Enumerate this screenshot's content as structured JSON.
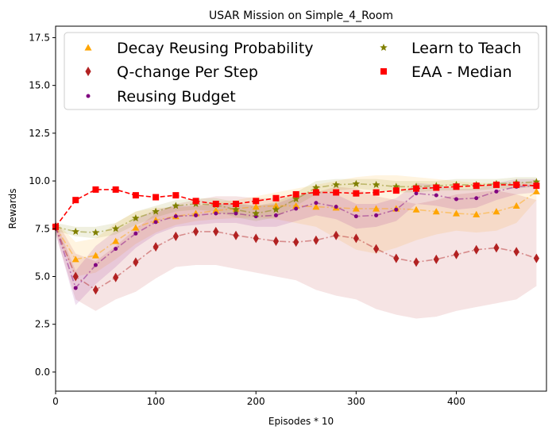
{
  "chart_data": {
    "type": "line",
    "title": "USAR Mission on Simple_4_Room",
    "xlabel": "Episodes * 10",
    "ylabel": "Rewards",
    "xlim": [
      0,
      490
    ],
    "ylim": [
      -1.0,
      18.1
    ],
    "xticks": [
      "0",
      "100",
      "200",
      "300",
      "400"
    ],
    "yticks": [
      "0.0",
      "2.5",
      "5.0",
      "7.5",
      "10.0",
      "12.5",
      "15.0",
      "17.5"
    ],
    "grid": false,
    "legend_position": "top",
    "series": [
      {
        "name": "Decay Reusing Probability",
        "color": "#ffa500",
        "marker": "triangle",
        "line_style": "dashdot",
        "x": [
          0,
          20,
          40,
          60,
          80,
          100,
          120,
          140,
          160,
          180,
          200,
          220,
          240,
          260,
          280,
          300,
          320,
          340,
          360,
          380,
          400,
          420,
          440,
          460,
          480
        ],
        "y": [
          7.6,
          5.9,
          6.1,
          6.85,
          7.55,
          7.95,
          8.15,
          8.3,
          8.45,
          8.55,
          8.65,
          8.7,
          8.7,
          8.65,
          8.6,
          8.55,
          8.55,
          8.55,
          8.5,
          8.4,
          8.3,
          8.25,
          8.4,
          8.7,
          9.45
        ],
        "lower": [
          7.3,
          5.0,
          5.2,
          5.9,
          6.7,
          7.3,
          7.7,
          7.9,
          8.0,
          8.05,
          8.1,
          8.0,
          7.8,
          7.6,
          7.0,
          6.4,
          6.2,
          6.5,
          6.9,
          7.2,
          7.4,
          7.3,
          7.4,
          7.8,
          9.0
        ],
        "upper": [
          7.9,
          6.8,
          7.0,
          7.8,
          8.4,
          8.6,
          8.6,
          8.7,
          8.9,
          9.0,
          9.2,
          9.4,
          9.6,
          9.8,
          10.0,
          10.2,
          10.3,
          10.3,
          10.2,
          10.1,
          10.0,
          9.9,
          9.9,
          9.9,
          10.0
        ]
      },
      {
        "name": "Q-change Per Step",
        "color": "#b22222",
        "marker": "diamond",
        "line_style": "dashdot",
        "x": [
          0,
          20,
          40,
          60,
          80,
          100,
          120,
          140,
          160,
          180,
          200,
          220,
          240,
          260,
          280,
          300,
          320,
          340,
          360,
          380,
          400,
          420,
          440,
          460,
          480
        ],
        "y": [
          7.6,
          5.0,
          4.3,
          4.95,
          5.75,
          6.55,
          7.1,
          7.35,
          7.35,
          7.15,
          7.0,
          6.85,
          6.8,
          6.9,
          7.15,
          7.0,
          6.45,
          5.95,
          5.75,
          5.9,
          6.15,
          6.4,
          6.5,
          6.3,
          5.95
        ],
        "lower": [
          7.2,
          3.8,
          3.2,
          3.8,
          4.2,
          4.9,
          5.5,
          5.6,
          5.6,
          5.4,
          5.2,
          5.0,
          4.8,
          4.3,
          4.0,
          3.8,
          3.3,
          3.0,
          2.8,
          2.9,
          3.2,
          3.4,
          3.6,
          3.8,
          4.5
        ],
        "upper": [
          8.0,
          6.2,
          5.8,
          6.6,
          7.5,
          8.3,
          8.8,
          9.0,
          9.2,
          9.2,
          9.1,
          9.1,
          9.2,
          9.4,
          9.7,
          9.6,
          9.2,
          9.0,
          8.8,
          9.0,
          9.3,
          9.4,
          9.5,
          9.3,
          9.0
        ]
      },
      {
        "name": "Reusing Budget",
        "color": "#800080",
        "marker": "point",
        "line_style": "dashdot",
        "x": [
          0,
          20,
          40,
          60,
          80,
          100,
          120,
          140,
          160,
          180,
          200,
          220,
          240,
          260,
          280,
          300,
          320,
          340,
          360,
          380,
          400,
          420,
          440,
          460,
          480
        ],
        "y": [
          7.6,
          4.4,
          5.6,
          6.45,
          7.25,
          7.85,
          8.15,
          8.2,
          8.3,
          8.3,
          8.15,
          8.2,
          8.55,
          8.85,
          8.65,
          8.15,
          8.2,
          8.5,
          9.35,
          9.25,
          9.05,
          9.1,
          9.45,
          9.7,
          9.75
        ],
        "lower": [
          7.3,
          3.5,
          4.6,
          5.5,
          6.5,
          7.2,
          7.6,
          7.7,
          7.8,
          7.8,
          7.6,
          7.6,
          7.9,
          8.2,
          8.0,
          7.5,
          7.6,
          7.9,
          8.8,
          8.7,
          8.5,
          8.6,
          9.0,
          9.3,
          9.4
        ],
        "upper": [
          7.9,
          5.3,
          6.6,
          7.4,
          8.0,
          8.5,
          8.7,
          8.7,
          8.8,
          8.8,
          8.7,
          8.8,
          9.2,
          9.5,
          9.3,
          8.8,
          8.8,
          9.1,
          9.9,
          9.8,
          9.6,
          9.6,
          9.9,
          10.1,
          10.1
        ]
      },
      {
        "name": "Learn to Teach",
        "color": "#808000",
        "marker": "star",
        "line_style": "dashdot",
        "x": [
          0,
          20,
          40,
          60,
          80,
          100,
          120,
          140,
          160,
          180,
          200,
          220,
          240,
          260,
          280,
          300,
          320,
          340,
          360,
          380,
          400,
          420,
          440,
          460,
          480
        ],
        "y": [
          7.6,
          7.35,
          7.3,
          7.5,
          8.05,
          8.4,
          8.7,
          8.8,
          8.75,
          8.5,
          8.3,
          8.5,
          9.05,
          9.65,
          9.8,
          9.85,
          9.8,
          9.7,
          9.7,
          9.75,
          9.8,
          9.8,
          9.85,
          9.9,
          9.95
        ],
        "lower": [
          7.4,
          7.1,
          7.0,
          7.2,
          7.7,
          8.1,
          8.4,
          8.5,
          8.4,
          8.1,
          7.9,
          8.1,
          8.7,
          9.3,
          9.5,
          9.6,
          9.5,
          9.4,
          9.4,
          9.5,
          9.5,
          9.5,
          9.6,
          9.6,
          9.7
        ],
        "upper": [
          7.8,
          7.6,
          7.6,
          7.8,
          8.4,
          8.7,
          9.0,
          9.1,
          9.1,
          8.9,
          8.7,
          8.9,
          9.4,
          10.0,
          10.1,
          10.1,
          10.1,
          10.0,
          10.0,
          10.0,
          10.1,
          10.1,
          10.1,
          10.2,
          10.2
        ]
      },
      {
        "name": "EAA - Median",
        "color": "#ff0000",
        "marker": "square",
        "line_style": "dashed",
        "x": [
          0,
          20,
          40,
          60,
          80,
          100,
          120,
          140,
          160,
          180,
          200,
          220,
          240,
          260,
          280,
          300,
          320,
          340,
          360,
          380,
          400,
          420,
          440,
          460,
          480
        ],
        "y": [
          7.6,
          9.0,
          9.55,
          9.55,
          9.25,
          9.15,
          9.25,
          8.95,
          8.8,
          8.8,
          8.95,
          9.1,
          9.3,
          9.4,
          9.4,
          9.35,
          9.4,
          9.5,
          9.6,
          9.65,
          9.7,
          9.75,
          9.8,
          9.8,
          9.75
        ]
      }
    ]
  }
}
